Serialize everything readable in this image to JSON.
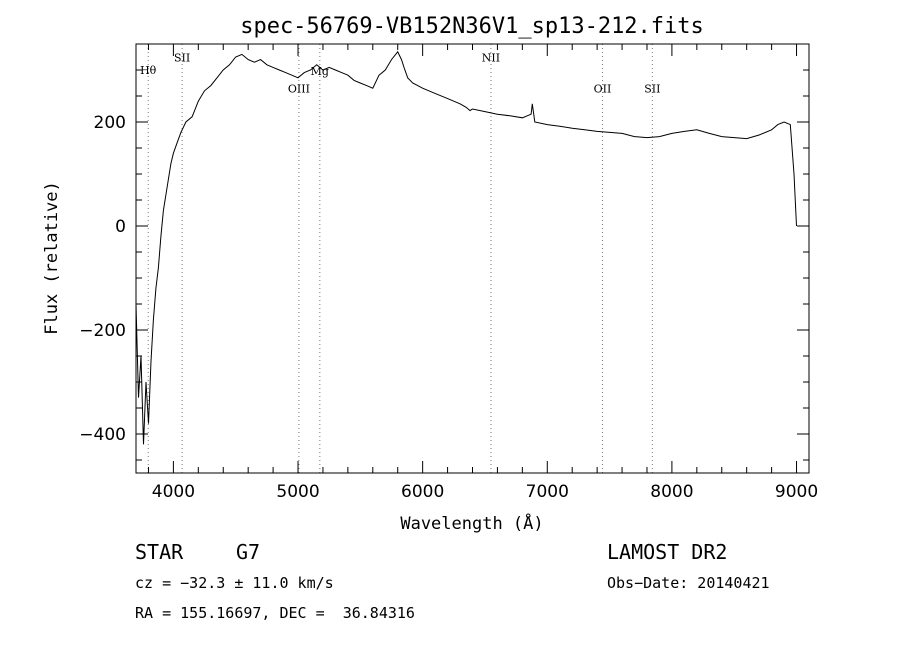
{
  "chart_data": {
    "type": "line",
    "title": "spec-56769-VB152N36V1_sp13-212.fits",
    "xlabel": "Wavelength (Å)",
    "ylabel": "Flux (relative)",
    "xlim": [
      3700,
      9100
    ],
    "ylim": [
      -475,
      350
    ],
    "xticks": [
      4000,
      5000,
      6000,
      7000,
      8000,
      9000
    ],
    "yticks": [
      -400,
      -200,
      0,
      200
    ],
    "grid": false,
    "series": [
      {
        "x": [
          3700,
          3720,
          3740,
          3760,
          3780,
          3800,
          3820,
          3840,
          3860,
          3880,
          3900,
          3920,
          3940,
          3960,
          3980,
          4000,
          4030,
          4060,
          4100,
          4150,
          4200,
          4250,
          4300,
          4350,
          4400,
          4450,
          4500,
          4550,
          4600,
          4650,
          4700,
          4750,
          4800,
          4850,
          4900,
          4950,
          5000,
          5050,
          5100,
          5150,
          5200,
          5250,
          5300,
          5350,
          5400,
          5450,
          5500,
          5550,
          5600,
          5650,
          5700,
          5750,
          5800,
          5830,
          5850,
          5880,
          5920,
          5960,
          6000,
          6100,
          6200,
          6300,
          6350,
          6380,
          6400,
          6500,
          6600,
          6700,
          6800,
          6870,
          6880,
          6900,
          7000,
          7100,
          7200,
          7300,
          7400,
          7500,
          7600,
          7700,
          7800,
          7900,
          8000,
          8100,
          8200,
          8300,
          8400,
          8500,
          8600,
          8700,
          8800,
          8850,
          8900,
          8950,
          8980,
          9000
        ],
        "y": [
          -150,
          -330,
          -250,
          -420,
          -300,
          -380,
          -260,
          -180,
          -120,
          -80,
          -20,
          30,
          60,
          90,
          120,
          140,
          160,
          180,
          200,
          210,
          240,
          260,
          270,
          285,
          300,
          310,
          325,
          330,
          320,
          315,
          320,
          310,
          305,
          300,
          295,
          290,
          285,
          295,
          300,
          310,
          300,
          305,
          300,
          295,
          290,
          280,
          275,
          270,
          265,
          290,
          300,
          320,
          335,
          320,
          305,
          285,
          275,
          270,
          265,
          255,
          245,
          235,
          228,
          222,
          225,
          220,
          215,
          212,
          208,
          215,
          235,
          200,
          195,
          192,
          188,
          185,
          182,
          180,
          178,
          172,
          170,
          172,
          178,
          182,
          185,
          178,
          172,
          170,
          168,
          175,
          185,
          195,
          200,
          195,
          100,
          0
        ]
      }
    ],
    "annotations": [
      {
        "label": "Hθ",
        "x": 3798,
        "y": 292
      },
      {
        "label": "SII",
        "x": 4070,
        "y": 316
      },
      {
        "label": "OIII",
        "x": 5007,
        "y": 257
      },
      {
        "label": "Mg",
        "x": 5175,
        "y": 290
      },
      {
        "label": "NII",
        "x": 6548,
        "y": 316
      },
      {
        "label": "OII",
        "x": 7443,
        "y": 257
      },
      {
        "label": "SII",
        "x": 7843,
        "y": 257
      }
    ]
  },
  "info": {
    "class": "STAR",
    "subclass": "G7",
    "survey": "LAMOST DR2",
    "cz": "cz = −32.3 ± 11.0 km/s",
    "obs_date": "Obs−Date: 20140421",
    "radec": "RA = 155.16697, DEC =  36.84316"
  }
}
